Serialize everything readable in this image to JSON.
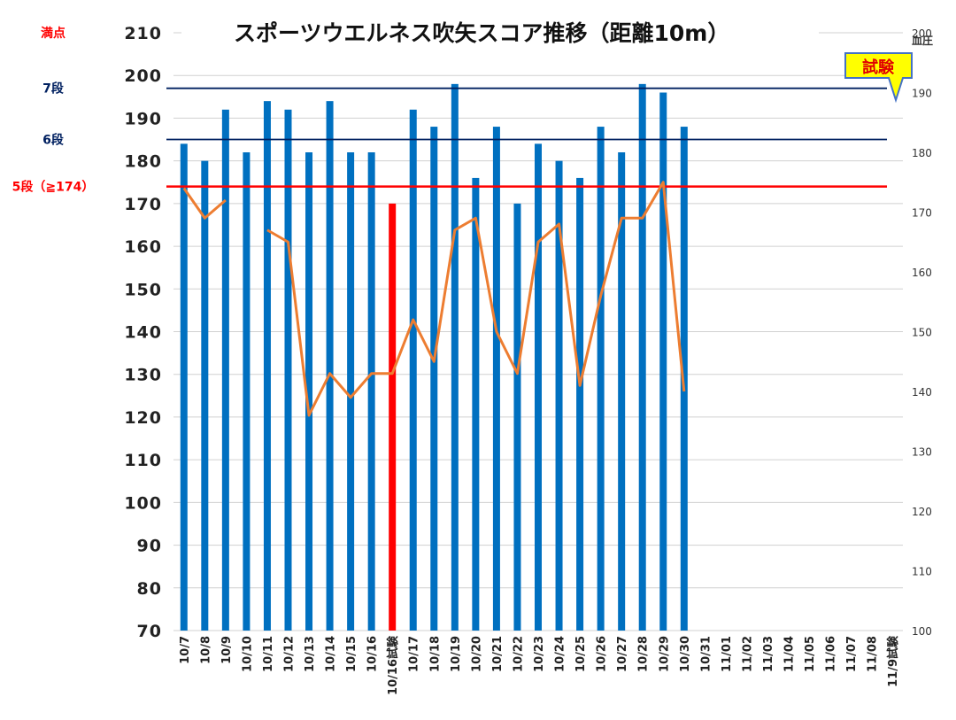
{
  "chart_data": {
    "type": "bar",
    "title": "スポーツウエルネス吹矢スコア推移（距離10m）",
    "categories": [
      "10/7",
      "10/8",
      "10/9",
      "10/10",
      "10/11",
      "10/12",
      "10/13",
      "10/14",
      "10/15",
      "10/16",
      "10/16試験",
      "10/17",
      "10/18",
      "10/19",
      "10/20",
      "10/21",
      "10/22",
      "10/23",
      "10/24",
      "10/25",
      "10/26",
      "10/27",
      "10/28",
      "10/29",
      "10/30",
      "10/31",
      "11/01",
      "11/02",
      "11/03",
      "11/04",
      "11/05",
      "11/06",
      "11/07",
      "11/08",
      "11/9試験"
    ],
    "series": [
      {
        "kind": "bar",
        "axis": "left",
        "values": [
          184,
          180,
          192,
          182,
          194,
          192,
          182,
          194,
          182,
          182,
          170,
          192,
          188,
          198,
          176,
          188,
          170,
          184,
          180,
          176,
          188,
          182,
          198,
          196,
          188,
          null,
          null,
          null,
          null,
          null,
          null,
          null,
          null,
          null,
          null
        ],
        "color": "#0070c0",
        "highlight_index": 10,
        "highlight_color": "#ff0000"
      },
      {
        "kind": "line",
        "axis": "right",
        "values": [
          174,
          169,
          172,
          null,
          167,
          165,
          136,
          143,
          139,
          143,
          143,
          152,
          145,
          167,
          169,
          150,
          143,
          165,
          168,
          141,
          156,
          169,
          169,
          175,
          140,
          null,
          null,
          null,
          null,
          null,
          null,
          null,
          null,
          null,
          null
        ],
        "color": "#ed7d31"
      }
    ],
    "y_axis": {
      "min": 70,
      "max": 210,
      "step": 10,
      "ticks": [
        "70",
        "80",
        "90",
        "100",
        "110",
        "120",
        "130",
        "140",
        "150",
        "160",
        "170",
        "180",
        "190",
        "200",
        "210"
      ]
    },
    "y2_axis": {
      "label": "血圧",
      "min": 100,
      "max": 200,
      "step": 10,
      "ticks": [
        "100",
        "110",
        "120",
        "130",
        "140",
        "150",
        "160",
        "170",
        "180",
        "190",
        "200"
      ]
    },
    "reference_lines": [
      {
        "value": 174,
        "label": "5段（≧174）",
        "color": "#ff0000"
      },
      {
        "value": 185,
        "label": "6段",
        "color": "#002060"
      },
      {
        "value": 197,
        "label": "7段",
        "color": "#002060"
      },
      {
        "value": 210,
        "label": "満点",
        "color": "#ff0000"
      }
    ],
    "badge": {
      "text": "試験",
      "fill": "#ffff00",
      "stroke": "#4472c4"
    },
    "grid": true,
    "legend": "none"
  }
}
